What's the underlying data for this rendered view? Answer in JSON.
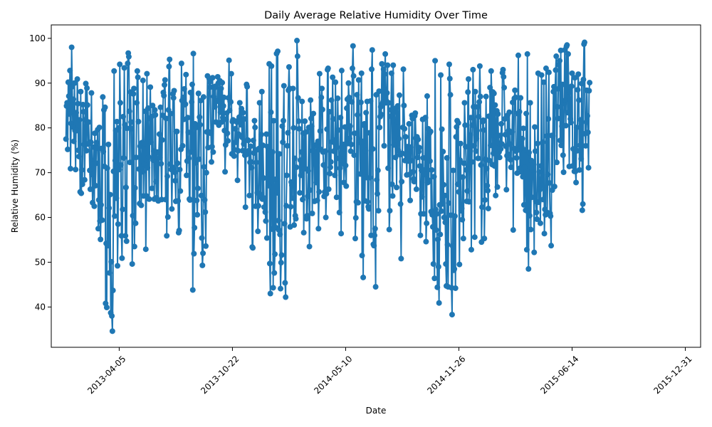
{
  "chart_data": {
    "type": "line",
    "title": "Daily Average Relative Humidity Over Time",
    "xlabel": "Date",
    "ylabel": "Relative Humidity (%)",
    "x_range": [
      "2013-01-01",
      "2016-01-01"
    ],
    "xlim": [
      "2012-12-06",
      "2016-01-27"
    ],
    "ylim": [
      31,
      103
    ],
    "x_ticks": [
      "2013-04-05",
      "2013-10-22",
      "2014-05-10",
      "2014-11-26",
      "2015-06-14",
      "2015-12-31"
    ],
    "y_ticks": [
      40,
      50,
      60,
      70,
      80,
      90,
      100
    ],
    "marker": "circle",
    "grid": false,
    "legend": "none",
    "color": "#1f77b4",
    "series": [
      {
        "start_date": "2013-01-01",
        "frequency": "daily",
        "values": [
          77.5,
          84.9,
          85.6,
          75.2,
          90.2,
          87.1,
          83.1,
          92.8,
          70.9,
          81.0,
          98.0,
          89.2,
          80.2,
          86.4,
          77.0,
          90.0,
          79.4,
          70.7,
          83.4,
          79.4,
          90.9,
          85.4,
          75.0,
          73.6,
          81.8,
          65.7,
          88.1,
          65.4,
          70.6,
          67.4,
          85.2,
          83.6,
          76.3,
          68.4,
          81.8,
          89.9,
          74.9,
          88.9,
          85.1,
          76.4,
          81.3,
          76.6,
          70.5,
          66.3,
          76.8,
          87.8,
          69.6,
          63.3,
          72.0,
          75.7,
          62.5,
          78.8,
          67.1,
          72.1,
          76.7,
          75.5,
          79.6,
          57.5,
          63.9,
          80.1,
          59.2,
          55.1,
          62.8,
          75.4,
          59.4,
          86.9,
          74.7,
          84.0,
          71.4,
          84.6,
          40.8,
          54.2,
          39.9,
          71.0,
          53.7,
          76.3,
          62.1,
          47.6,
          65.1,
          38.7,
          50.1,
          38.0,
          34.6,
          43.7,
          70.3,
          92.7,
          60.3,
          72.7,
          79.4,
          64.3,
          81.4,
          49.2,
          58.5,
          80.0,
          70.7,
          94.2,
          85.6,
          71.7,
          55.9,
          50.9,
          61.8,
          82.5,
          73.3,
          93.4,
          80.7,
          55.9,
          66.7,
          54.7,
          79.9,
          94.4,
          96.7,
          95.9,
          83.7,
          72.3,
          88.0,
          81.3,
          79.8,
          49.6,
          60.4,
          87.6,
          88.8,
          53.5,
          66.6,
          58.7,
          73.4,
          85.6,
          92.7,
          91.3,
          81.4,
          70.8,
          63.1,
          75.9,
          70.8,
          62.7,
          76.7,
          70.2,
          90.6,
          64.8,
          71.9,
          76.5,
          83.7,
          52.9,
          64.8,
          92.1,
          71.1,
          84.4,
          73.5,
          64.1,
          82.1,
          89.1,
          76.8,
          82.5,
          66.5,
          85.0,
          72.8,
          74.8,
          64.1,
          84.0,
          82.9,
          68.0,
          64.4,
          74.6,
          72.1,
          63.7,
          74.5,
          78.6,
          73.3,
          84.6,
          72.0,
          64.0,
          77.3,
          82.8,
          87.9,
          87.2,
          89.6,
          90.7,
          64.0,
          82.1,
          55.9,
          69.2,
          60.1,
          84.0,
          93.7,
          95.3,
          71.9,
          83.2,
          70.7,
          61.9,
          71.2,
          87.6,
          86.7,
          88.3,
          70.1,
          68.2,
          63.6,
          79.2,
          79.2,
          72.1,
          63.7,
          56.6,
          57.1,
          70.7,
          65.9,
          75.2,
          94.4,
          86.1,
          76.0,
          86.8,
          81.9,
          88.7,
          85.2,
          85.3,
          91.9,
          69.4,
          72.6,
          82.3,
          79.0,
          73.2,
          64.1,
          63.9,
          87.9,
          74.6,
          85.8,
          89.7,
          43.8,
          96.6,
          51.9,
          57.7,
          80.9,
          72.2,
          80.1,
          63.8,
          60.6,
          66.5,
          87.7,
          73.0,
          82.4,
          80.7,
          86.1,
          64.9,
          55.4,
          49.3,
          52.0,
          86.9,
          71.3,
          63.9,
          61.2,
          53.6,
          70.0,
          79.1,
          91.6,
          75.6,
          79.1,
          91.0,
          90.3,
          89.1,
          78.8,
          72.4,
          75.8,
          91.2,
          74.6,
          87.0,
          88.9,
          84.7,
          89.3,
          81.3,
          86.1,
          86.0,
          91.4,
          90.0,
          80.6,
          85.8,
          90.5,
          83.5,
          88.8,
          81.3,
          90.1,
          82.3,
          84.9,
          86.8,
          79.4,
          70.2,
          76.2,
          81.9,
          83.3,
          78.8,
          77.1,
          86.7,
          95.1,
          83.9,
          85.9,
          85.8,
          92.1,
          74.2,
          81.4,
          81.8,
          73.9,
          73.7,
          75.1,
          79.8,
          76.8,
          81.5,
          81.3,
          68.3,
          74.9,
          78.6,
          82.4,
          85.6,
          81.9,
          80.7,
          84.3,
          77.9,
          74.9,
          83.4,
          76.4,
          82.0,
          73.9,
          62.3,
          74.0,
          89.7,
          89.2,
          77.3,
          77.2,
          74.9,
          64.9,
          72.3,
          75.9,
          72.4,
          71.1,
          53.4,
          53.2,
          77.2,
          74.4,
          81.6,
          80.1,
          62.5,
          72.3,
          75.1,
          65.5,
          56.9,
          62.6,
          75.4,
          85.6,
          64.6,
          65.1,
          78.5,
          88.1,
          64.1,
          76.1,
          68.8,
          62.3,
          64.3,
          61.2,
          59.2,
          78.6,
          55.4,
          75.8,
          68.5,
          67.1,
          94.3,
          49.7,
          43.0,
          83.5,
          93.8,
          57.4,
          74.6,
          44.3,
          81.6,
          47.6,
          51.8,
          68.5,
          57.7,
          96.6,
          65.5,
          97.1,
          59.3,
          57.2,
          74.2,
          56.2,
          44.1,
          49.9,
          51.6,
          80.4,
          76.8,
          81.6,
          89.4,
          58.6,
          45.4,
          42.2,
          62.6,
          69.4,
          76.0,
          78.9,
          88.4,
          93.6,
          88.8,
          57.9,
          62.4,
          67.9,
          67.2,
          64.3,
          88.8,
          80.0,
          58.3,
          73.2,
          60.4,
          59.7,
          71.2,
          99.5,
          96.0,
          86.7,
          81.5,
          79.8,
          65.5,
          72.8,
          69.4,
          74.6,
          85.9,
          64.0,
          78.8,
          56.6,
          71.1,
          81.5,
          70.9,
          79.1,
          59.7,
          60.4,
          64.7,
          70.4,
          80.1,
          53.5,
          66.1,
          86.2,
          82.1,
          80.4,
          60.9,
          74.9,
          83.2,
          74.9,
          63.6,
          76.0,
          71.8,
          67.8,
          76.3,
          63.8,
          77.0,
          57.5,
          65.7,
          92.1,
          79.3,
          75.2,
          86.8,
          88.8,
          84.1,
          74.6,
          71.7,
          64.7,
          65.7,
          74.8,
          60.0,
          65.3,
          79.7,
          93.0,
          93.3,
          66.3,
          83.6,
          69.8,
          71.2,
          72.4,
          86.2,
          76.9,
          91.3,
          82.0,
          74.8,
          76.7,
          69.4,
          90.2,
          77.4,
          64.5,
          75.7,
          86.6,
          79.5,
          73.2,
          61.1,
          71.0,
          82.3,
          56.4,
          92.8,
          74.3,
          72.6,
          76.3,
          67.8,
          71.8,
          80.2,
          71.6,
          67.0,
          84.4,
          86.4,
          76.5,
          90.0,
          86.8,
          77.6,
          80.4,
          74.8,
          76.3,
          85.8,
          93.3,
          98.3,
          91.6,
          73.9,
          78.8,
          55.3,
          59.9,
          63.5,
          87.4,
          82.9,
          63.3,
          90.7,
          76.8,
          77.3,
          69.7,
          85.7,
          92.2,
          51.5,
          77.0,
          46.6,
          80.6,
          80.9,
          63.7,
          74.9,
          83.4,
          68.9,
          85.9,
          63.5,
          62.4,
          61.9,
          78.9,
          68.9,
          86.0,
          56.0,
          93.1,
          97.4,
          75.3,
          54.0,
          53.7,
          56.0,
          57.5,
          44.5,
          87.4,
          68.4,
          65.3,
          70.5,
          61.5,
          88.2,
          80.1,
          82.5,
          84.7,
          83.0,
          94.3,
          85.4,
          85.8,
          93.1,
          76.0,
          92.0,
          96.5,
          85.6,
          86.0,
          87.8,
          94.0,
          71.0,
          85.6,
          57.3,
          61.5,
          82.6,
          84.0,
          92.2,
          67.4,
          64.8,
          94.0,
          76.2,
          83.5,
          79.7,
          73.4,
          84.4,
          66.7,
          81.4,
          84.9,
          75.0,
          77.6,
          87.3,
          74.0,
          63.0,
          50.8,
          68.0,
          74.3,
          80.1,
          93.1,
          85.0,
          79.8,
          72.7,
          78.0,
          74.0,
          69.5,
          75.8,
          74.2,
          72.6,
          80.9,
          69.6,
          63.8,
          75.7,
          72.7,
          82.8,
          82.1,
          70.2,
          68.6,
          68.0,
          82.7,
          83.3,
          77.7,
          66.3,
          78.0,
          73.4,
          77.4,
          74.7,
          75.6,
          71.5,
          56.0,
          60.8,
          70.5,
          64.6,
          81.9,
          73.3,
          60.8,
          70.6,
          69.6,
          82.3,
          54.6,
          58.7,
          87.1,
          67.8,
          79.8,
          68.3,
          78.8,
          72.6,
          79.2,
          61.3,
          70.6,
          60.6,
          57.9,
          49.6,
          69.1,
          46.4,
          95.0,
          61.8,
          57.2,
          60.8,
          44.4,
          55.1,
          49.0,
          40.9,
          62.8,
          56.2,
          91.8,
          61.4,
          79.7,
          63.0,
          74.7,
          67.3,
          60.0,
          64.9,
          58.9,
          49.6,
          44.7,
          73.3,
          53.9,
          44.5,
          63.2,
          94.2,
          91.0,
          87.4,
          60.5,
          44.3,
          38.3,
          53.6,
          70.5,
          48.2,
          48.5,
          60.3,
          44.2,
          78.0,
          80.2,
          81.6,
          67.4,
          81.1,
          65.7,
          49.5,
          72.8,
          76.5,
          61.5,
          62.0,
          59.5,
          69.0,
          55.3,
          72.1,
          85.6,
          80.6,
          75.8,
          70.6,
          63.6,
          65.9,
          88.0,
          90.9,
          63.5,
          70.8,
          78.4,
          82.3,
          52.8,
          72.4,
          80.6,
          93.0,
          84.7,
          76.0,
          55.6,
          88.1,
          74.8,
          77.6,
          79.4,
          84.7,
          73.2,
          82.5,
          85.8,
          93.8,
          87.0,
          71.7,
          54.5,
          62.3,
          81.4,
          81.7,
          79.5,
          55.3,
          63.9,
          73.0,
          87.0,
          70.9,
          67.1,
          66.0,
          62.0,
          82.6,
          72.7,
          89.0,
          76.1,
          92.7,
          88.1,
          71.8,
          88.0,
          74.3,
          87.7,
          71.5,
          85.1,
          64.9,
          78.1,
          83.8,
          66.8,
          83.1,
          76.6,
          74.6,
          73.4,
          78.3,
          75.3,
          80.9,
          76.4,
          92.3,
          93.0,
          91.4,
          89.0,
          82.0,
          78.5,
          75.9,
          66.2,
          73.8,
          82.8,
          74.1,
          79.4,
          83.5,
          76.4,
          72.9,
          71.2,
          79.0,
          79.1,
          85.7,
          57.2,
          75.4,
          86.6,
          88.4,
          86.8,
          74.8,
          73.3,
          69.9,
          83.2,
          96.2,
          75.1,
          83.6,
          71.0,
          86.7,
          70.2,
          75.8,
          77.6,
          69.1,
          79.9,
          62.8,
          71.2,
          75.1,
          61.6,
          83.2,
          52.8,
          96.5,
          61.3,
          48.5,
          74.5,
          60.4,
          85.6,
          57.3,
          72.7,
          64.5,
          70.6,
          71.2,
          71.8,
          52.2,
          80.2,
          74.8,
          63.6,
          61.1,
          59.6,
          76.5,
          92.2,
          63.4,
          70.2,
          66.2,
          58.7,
          71.5,
          91.8,
          67.1,
          76.8,
          64.0,
          90.2,
          56.4,
          61.8,
          60.6,
          93.3,
          78.2,
          61.1,
          69.6,
          82.0,
          92.4,
          67.7,
          60.9,
          60.3,
          53.7,
          78.3,
          66.1,
          78.2,
          88.1,
          89.2,
          66.9,
          88.5,
          92.9,
          96.0,
          72.3,
          84.7,
          82.1,
          94.1,
          88.8,
          95.0,
          77.2,
          97.3,
          76.1,
          80.4,
          89.7,
          73.9,
          70.1,
          85.4,
          97.4,
          86.2,
          80.5,
          98.2,
          98.5,
          83.4,
          96.5,
          88.8,
          71.4,
          88.0,
          82.0,
          81.2,
          89.3,
          92.2,
          71.5,
          75.3,
          71.6,
          70.3,
          91.2,
          70.3,
          67.8,
          80.1,
          74.9,
          88.5,
          92.0,
          86.2,
          70.6,
          76.1,
          81.8,
          73.1,
          89.9,
          61.6,
          63.0,
          90.8,
          98.7,
          99.1,
          78.7,
          76.0,
          81.3,
          88.4,
          82.7,
          79.0,
          71.1,
          88.3,
          90.1
        ]
      }
    ]
  }
}
